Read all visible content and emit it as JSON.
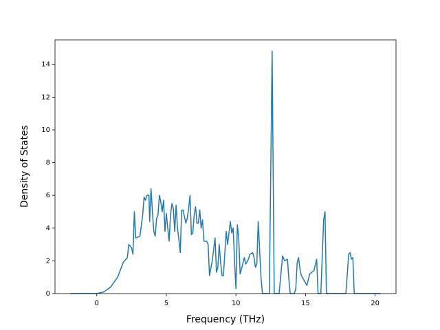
{
  "chart_data": {
    "type": "line",
    "x_label": "Frequency (THz)",
    "y_label": "Density of States",
    "xlim": [
      -3.0,
      21.5
    ],
    "ylim": [
      0,
      15.5
    ],
    "xticks": [
      0,
      5,
      10,
      15,
      20
    ],
    "yticks": [
      0,
      2,
      4,
      6,
      8,
      10,
      12,
      14
    ],
    "series": [
      {
        "color": "#1f77b4",
        "x": [
          -1.9,
          0,
          0.5,
          1.0,
          1.5,
          1.9,
          2.2,
          2.3,
          2.5,
          2.6,
          2.7,
          2.8,
          3.1,
          3.3,
          3.4,
          3.5,
          3.6,
          3.75,
          3.8,
          3.9,
          4.0,
          4.1,
          4.2,
          4.3,
          4.4,
          4.5,
          4.6,
          4.7,
          4.8,
          4.9,
          5.0,
          5.1,
          5.2,
          5.3,
          5.4,
          5.5,
          5.6,
          5.7,
          5.8,
          5.9,
          6.0,
          6.1,
          6.2,
          6.4,
          6.5,
          6.6,
          6.7,
          6.8,
          6.9,
          7.0,
          7.1,
          7.2,
          7.3,
          7.4,
          7.5,
          7.6,
          7.7,
          7.9,
          8.0,
          8.1,
          8.3,
          8.5,
          8.6,
          8.7,
          8.8,
          8.9,
          9.0,
          9.1,
          9.3,
          9.4,
          9.6,
          9.7,
          9.8,
          9.9,
          10.0,
          10.1,
          10.2,
          10.3,
          10.4,
          10.6,
          10.7,
          10.9,
          11.0,
          11.2,
          11.3,
          11.4,
          11.5,
          11.6,
          11.8,
          11.9,
          12.4,
          12.6,
          12.75,
          13.1,
          13.35,
          13.5,
          13.7,
          13.8,
          13.9,
          14.2,
          14.3,
          14.4,
          14.5,
          14.6,
          14.7,
          14.9,
          15.1,
          15.3,
          15.6,
          15.8,
          15.9,
          16.1,
          16.3,
          16.4,
          16.5,
          17.9,
          18.1,
          18.2,
          18.3,
          18.4,
          18.5,
          20.4
        ],
        "values": [
          0,
          0,
          0.1,
          0.4,
          1.0,
          1.9,
          2.2,
          3.0,
          2.8,
          2.4,
          5.0,
          3.4,
          3.5,
          4.8,
          5.9,
          5.7,
          6.0,
          6.0,
          4.4,
          6.4,
          5.0,
          3.8,
          3.5,
          4.6,
          4.8,
          6.0,
          5.6,
          5.0,
          5.7,
          3.8,
          4.9,
          4.0,
          3.2,
          4.8,
          5.5,
          5.2,
          3.8,
          5.4,
          4.0,
          3.3,
          2.5,
          5.1,
          5.1,
          4.3,
          4.6,
          5.2,
          6.0,
          3.6,
          3.7,
          4.8,
          5.3,
          4.3,
          4.3,
          5.1,
          4.0,
          4.5,
          3.2,
          3.2,
          3.0,
          1.1,
          2.0,
          3.4,
          1.3,
          1.6,
          3.0,
          1.9,
          1.1,
          1.1,
          3.8,
          3.0,
          4.4,
          3.7,
          4.0,
          2.0,
          0.3,
          4.2,
          3.4,
          1.2,
          1.5,
          2.2,
          1.8,
          2.1,
          2.4,
          2.5,
          2.2,
          1.6,
          1.8,
          4.4,
          1.0,
          0,
          0,
          14.8,
          0,
          0,
          2.3,
          2.0,
          2.1,
          0.9,
          0,
          0,
          0.3,
          1.9,
          2.2,
          1.5,
          1.1,
          0.8,
          0.5,
          1.2,
          1.4,
          2.1,
          0,
          0,
          4.5,
          5.0,
          0,
          0,
          2.4,
          2.5,
          2.1,
          2.2,
          0,
          0
        ]
      }
    ]
  }
}
